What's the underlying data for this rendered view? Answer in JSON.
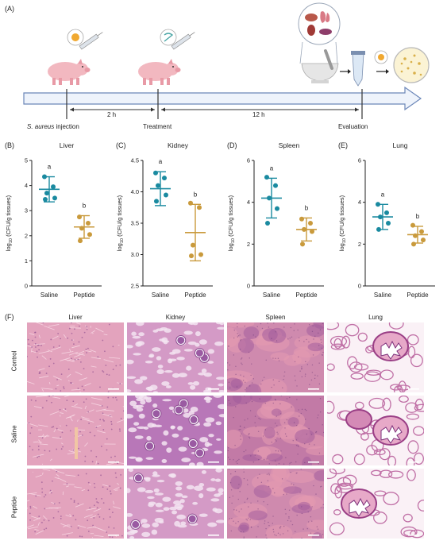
{
  "panel_a": {
    "letter": "(A)",
    "timeline": {
      "injection_label": "S. aureus",
      "injection_suffix": " injection",
      "interval_1": "2 h",
      "treatment_label": "Treatment",
      "interval_2": "12 h",
      "evaluation_label": "Evaluation"
    }
  },
  "chart_data": [
    {
      "type": "scatter",
      "panel": "(B)",
      "title": "Liver",
      "ylabel": "log10 (CFU/g tissues)",
      "ylabel_base": "log",
      "ylabel_sub": "10",
      "ylabel_rest": " (CFU/g tissues)",
      "categories": [
        "Saline",
        "Peptide"
      ],
      "ylim": [
        0,
        5
      ],
      "yticks": [
        "0",
        "1",
        "2",
        "3",
        "4",
        "5"
      ],
      "series": [
        {
          "mean": 3.85,
          "sd": 0.5,
          "points": [
            4.35,
            3.95,
            3.7,
            3.5,
            3.45
          ],
          "letter": "a",
          "color": "#1a8aa0"
        },
        {
          "mean": 2.35,
          "sd": 0.45,
          "points": [
            2.75,
            2.5,
            2.3,
            2.05,
            1.8
          ],
          "letter": "b",
          "color": "#c99a3c"
        }
      ]
    },
    {
      "type": "scatter",
      "panel": "(C)",
      "title": "Kidney",
      "ylabel": "log10 (CFU/g tissues)",
      "ylabel_base": "log",
      "ylabel_sub": "10",
      "ylabel_rest": " (CFU/g tissues)",
      "categories": [
        "Saline",
        "Peptide"
      ],
      "ylim": [
        2.5,
        4.5
      ],
      "yticks": [
        "2.5",
        "3.0",
        "3.5",
        "4.0",
        "4.5"
      ],
      "series": [
        {
          "mean": 4.05,
          "sd": 0.27,
          "points": [
            4.3,
            4.22,
            4.1,
            3.95,
            3.85
          ],
          "letter": "a",
          "color": "#1a8aa0"
        },
        {
          "mean": 3.35,
          "sd": 0.45,
          "points": [
            3.82,
            3.75,
            3.15,
            3.0,
            2.98
          ],
          "letter": "b",
          "color": "#c99a3c"
        }
      ]
    },
    {
      "type": "scatter",
      "panel": "(D)",
      "title": "Spleen",
      "ylabel": "log10 (CFU/g tissues)",
      "ylabel_base": "log",
      "ylabel_sub": "10",
      "ylabel_rest": " (CFU/g tissues)",
      "categories": [
        "Saline",
        "Peptide"
      ],
      "ylim": [
        0,
        6
      ],
      "yticks": [
        "0",
        "2",
        "4",
        "6"
      ],
      "series": [
        {
          "mean": 4.2,
          "sd": 0.95,
          "points": [
            5.2,
            4.8,
            4.2,
            3.7,
            3.0
          ],
          "letter": "a",
          "color": "#1a8aa0"
        },
        {
          "mean": 2.7,
          "sd": 0.55,
          "points": [
            3.2,
            3.0,
            2.7,
            2.6,
            2.0
          ],
          "letter": "b",
          "color": "#c99a3c"
        }
      ]
    },
    {
      "type": "scatter",
      "panel": "(E)",
      "title": "Lung",
      "ylabel": "log10 (CFU/g tissues)",
      "ylabel_base": "log",
      "ylabel_sub": "10",
      "ylabel_rest": " (CFU/g tissues)",
      "categories": [
        "Saline",
        "Peptide"
      ],
      "ylim": [
        0,
        6
      ],
      "yticks": [
        "0",
        "2",
        "4",
        "6"
      ],
      "series": [
        {
          "mean": 3.3,
          "sd": 0.6,
          "points": [
            3.9,
            3.5,
            3.3,
            3.0,
            2.7
          ],
          "letter": "a",
          "color": "#1a8aa0"
        },
        {
          "mean": 2.45,
          "sd": 0.4,
          "points": [
            2.9,
            2.6,
            2.4,
            2.2,
            2.0
          ],
          "letter": "b",
          "color": "#c99a3c"
        }
      ]
    }
  ],
  "panel_f": {
    "letter": "(F)",
    "columns": [
      "Liver",
      "Kidney",
      "Spleen",
      "Lung"
    ],
    "rows": [
      "Control",
      "Saline",
      "Peptide"
    ]
  },
  "colors": {
    "saline": "#1a8aa0",
    "peptide": "#c99a3c",
    "tissue_pink": "#e7a9c0",
    "tissue_purple": "#b06aa8",
    "timeline": "#6b86b8"
  }
}
